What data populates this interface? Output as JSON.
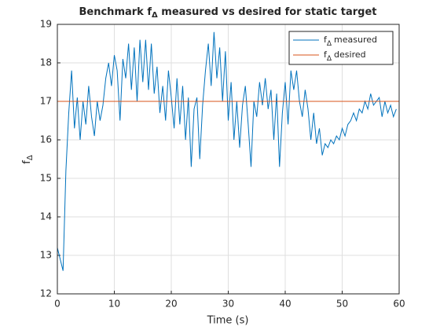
{
  "chart_data": {
    "type": "line",
    "title": {
      "before": "Benchmark",
      "after": " measured vs desired for static target"
    },
    "symbol": {
      "base": "f",
      "subscript": "Δ"
    },
    "x_label": "Time (s)",
    "xlim": [
      0,
      60
    ],
    "xticks": [
      0,
      10,
      20,
      30,
      40,
      50,
      60
    ],
    "ylim": [
      12,
      19
    ],
    "yticks": [
      12,
      13,
      14,
      15,
      16,
      17,
      18,
      19
    ],
    "grid": true,
    "legend": "upper right",
    "series": [
      {
        "name": "measured",
        "color": "#0072bd",
        "x": [
          0,
          0.5,
          1,
          1.5,
          2,
          2.5,
          3,
          3.5,
          4,
          4.5,
          5,
          5.5,
          6,
          6.5,
          7,
          7.5,
          8,
          8.5,
          9,
          9.5,
          10,
          10.5,
          11,
          11.5,
          12,
          12.5,
          13,
          13.5,
          14,
          14.5,
          15,
          15.5,
          16,
          16.5,
          17,
          17.5,
          18,
          18.5,
          19,
          19.5,
          20,
          20.5,
          21,
          21.5,
          22,
          22.5,
          23,
          23.5,
          24,
          24.5,
          25,
          25.5,
          26,
          26.5,
          27,
          27.5,
          28,
          28.5,
          29,
          29.5,
          30,
          30.5,
          31,
          31.5,
          32,
          32.5,
          33,
          33.5,
          34,
          34.5,
          35,
          35.5,
          36,
          36.5,
          37,
          37.5,
          38,
          38.5,
          39,
          39.5,
          40,
          40.5,
          41,
          41.5,
          42,
          42.5,
          43,
          43.5,
          44,
          44.5,
          45,
          45.5,
          46,
          46.5,
          47,
          47.5,
          48,
          48.5,
          49,
          49.5,
          50,
          50.5,
          51,
          51.5,
          52,
          52.5,
          53,
          53.5,
          54,
          54.5,
          55,
          55.5,
          56,
          56.5,
          57,
          57.5,
          58,
          58.5,
          59,
          59.5
        ],
        "values": [
          13.2,
          12.9,
          12.6,
          15.2,
          16.7,
          17.8,
          16.3,
          17.1,
          16.0,
          17.0,
          16.4,
          17.4,
          16.6,
          16.1,
          17.0,
          16.5,
          16.9,
          17.6,
          18.0,
          17.4,
          18.2,
          17.8,
          16.5,
          18.1,
          17.6,
          18.5,
          17.3,
          18.4,
          17.0,
          18.6,
          17.5,
          18.6,
          17.3,
          18.5,
          17.2,
          17.9,
          16.7,
          17.4,
          16.5,
          17.8,
          17.1,
          16.3,
          17.6,
          16.4,
          17.4,
          16.0,
          17.1,
          15.3,
          16.8,
          17.1,
          15.5,
          16.9,
          17.8,
          18.5,
          17.4,
          18.8,
          17.6,
          18.4,
          17.0,
          18.3,
          16.5,
          17.5,
          16.0,
          17.0,
          15.8,
          16.9,
          17.4,
          16.4,
          15.3,
          17.0,
          16.6,
          17.5,
          16.9,
          17.6,
          16.8,
          17.3,
          16.0,
          17.2,
          15.3,
          16.7,
          17.5,
          16.4,
          17.8,
          17.3,
          17.8,
          17.0,
          16.6,
          17.3,
          16.8,
          16.0,
          16.7,
          15.9,
          16.3,
          15.6,
          15.9,
          15.8,
          16.0,
          15.9,
          16.1,
          16.0,
          16.3,
          16.1,
          16.4,
          16.5,
          16.7,
          16.5,
          16.8,
          16.7,
          17.0,
          16.8,
          17.2,
          16.9,
          17.0,
          17.1,
          16.6,
          17.0,
          16.7,
          16.9,
          16.6,
          16.8
        ]
      },
      {
        "name": "desired",
        "color": "#d95319",
        "x": [
          0,
          60
        ],
        "values": [
          17,
          17
        ]
      }
    ]
  }
}
